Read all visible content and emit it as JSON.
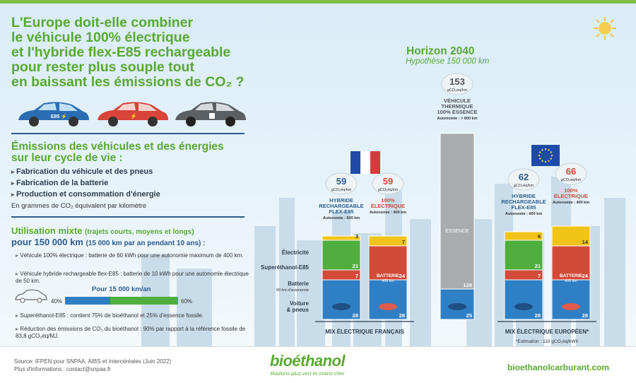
{
  "title": "L'Europe doit-elle combiner le véhicule 100% électrique et l'hybride flex-E85 rechargeable pour rester plus souple tout en baissant les émissions de CO₂ ?",
  "title_lines": [
    "L'Europe doit-elle combiner",
    "le véhicule 100% électrique",
    "et l'hybride flex-E85 rechargeable",
    "pour rester plus souple tout",
    "en baissant les émissions de CO₂ ?"
  ],
  "section_title_lines": [
    "Émissions des véhicules et des énergies",
    "sur leur cycle de vie :"
  ],
  "bullets": [
    "Fabrication du véhicule et des pneus",
    "Fabrication de la batterie",
    "Production et consommation d'énergie"
  ],
  "unit_note": "En grammes de CO₂ équivalent par kilomètre",
  "usage": {
    "line1": "Utilisation mixte",
    "line1_sub": "(trajets courts, moyens et longs)",
    "line2": "pour 150 000 km",
    "line2_sub": "(15 000 km par an pendant 10 ans) :"
  },
  "notes": [
    "Véhicule 100% électrique : batterie de 60 kWh pour une autonomie maximum de 400 km.",
    "Véhicule hybride rechargeable flex-E85 : batterie de 10 kWh pour une autonomie électrique de 50 km.",
    "Superéthanol-E85 : contient 75% de bioéthanol et 25% d'essence fossile.",
    "Réduction des émissions de CO₂ du bioéthanol : 90% par rapport à la référence fossile de 83,8 gCO₂éq/MJ."
  ],
  "mini_bar": {
    "title": "Pour 15 000 km/an",
    "left": "40%",
    "right": "60%",
    "left_value": 40,
    "right_value": 60
  },
  "horizon": {
    "title": "Horizon 2040",
    "subtitle": "Hypothèse 150 000 km"
  },
  "footer": {
    "source": "Source: IFPEN pour SNPAA, AIBS et Intercéréales (Juin 2022)",
    "contact": "Plus d'informations : contact@snpaa.fr",
    "logo": "bioéthanol",
    "tagline": "Roulons plus vert et moins cher",
    "website": "bioethanolcarburant.com"
  },
  "colors": {
    "green": "#5aa832",
    "blue_bar": "#2f7fc4",
    "red_bar": "#d34a3a",
    "green_bar": "#4fae3e",
    "yellow_bar": "#f0c419",
    "grey_bar": "#a9acae",
    "navy": "#2d3e50"
  },
  "chart_data": {
    "type": "bar",
    "stacked": true,
    "layer_labels": [
      "Électricité",
      "Superéthanol-E85",
      "Batterie",
      "Voiture & pneus"
    ],
    "battery_sub": "50 km d'autonomie",
    "groups": [
      {
        "label": "MIX ÉLECTRIQUE FRANÇAIS",
        "flag": "france-flag"
      },
      {
        "label": "MIX ÉLECTRIQUE EUROPÉEN*",
        "flag": "europe-flag",
        "footnote": "*Estimation : 110 gCO₂éq/kWh"
      }
    ],
    "bars": [
      {
        "group": 0,
        "name_lines": [
          "HYBRIDE",
          "RECHARGEABLE",
          "FLEX-E85"
        ],
        "autonomy": "Autonomie : 600 km",
        "total": "59",
        "unit": "gCO₂éq/km",
        "segments": [
          {
            "layer": "Voiture & pneus",
            "value": 28
          },
          {
            "layer": "Batterie",
            "value": 7
          },
          {
            "layer": "Superéthanol-E85",
            "value": 21
          },
          {
            "layer": "Électricité",
            "value": 3
          }
        ]
      },
      {
        "group": 0,
        "name_lines": [
          "100%",
          "ÉLECTRIQUE"
        ],
        "autonomy": "Autonomie : 400 km",
        "total": "59",
        "unit": "gCO₂éq/km",
        "battery_label": "BATTERIE",
        "battery_autonomy": "400 km",
        "segments": [
          {
            "layer": "Voiture & pneus",
            "value": 28
          },
          {
            "layer": "Batterie",
            "value": 24
          },
          {
            "layer": "Électricité",
            "value": 7
          }
        ]
      },
      {
        "group": null,
        "name_lines": [
          "VÉHICULE",
          "THERMIQUE",
          "100% ESSENCE"
        ],
        "autonomy": "Autonomie : > 600 km",
        "total": "153",
        "unit": "gCO₂éq/km",
        "fuel_label": "ESSENCE",
        "segments": [
          {
            "layer": "Voiture & pneus",
            "value": 25
          },
          {
            "layer": "Essence",
            "value": 128
          }
        ]
      },
      {
        "group": 1,
        "name_lines": [
          "HYBRIDE",
          "RECHARGEABLE",
          "FLEX-E85"
        ],
        "autonomy": "Autonomie : 600 km",
        "total": "62",
        "unit": "gCO₂éq/km",
        "segments": [
          {
            "layer": "Voiture & pneus",
            "value": 28
          },
          {
            "layer": "Batterie",
            "value": 7
          },
          {
            "layer": "Superéthanol-E85",
            "value": 21
          },
          {
            "layer": "Électricité",
            "value": 6
          }
        ]
      },
      {
        "group": 1,
        "name_lines": [
          "100%",
          "ÉLECTRIQUE"
        ],
        "autonomy": "Autonomie : 400 km",
        "total": "66",
        "unit": "gCO₂éq/km",
        "battery_label": "BATTERIE",
        "battery_autonomy": "400 km",
        "segments": [
          {
            "layer": "Voiture & pneus",
            "value": 28
          },
          {
            "layer": "Batterie",
            "value": 24
          },
          {
            "layer": "Électricité",
            "value": 14
          }
        ]
      }
    ]
  }
}
